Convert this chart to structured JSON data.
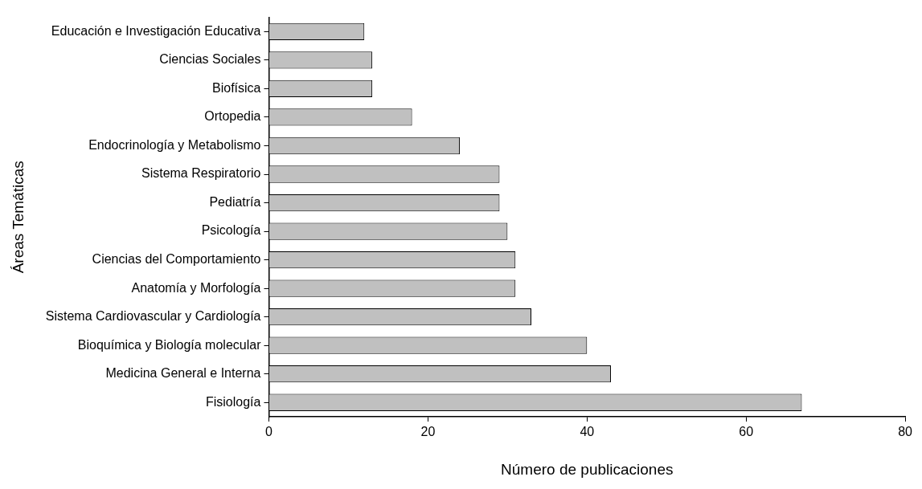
{
  "chart_data": {
    "type": "bar",
    "orientation": "horizontal",
    "xlabel": "Número de publicaciones",
    "ylabel": "Áreas Temáticas",
    "categories": [
      "Educación e Investigación Educativa",
      "Ciencias Sociales",
      "Biofísica",
      "Ortopedia",
      "Endocrinología y Metabolismo",
      "Sistema Respiratorio",
      "Pediatría",
      "Psicología",
      "Ciencias del Comportamiento",
      "Anatomía y Morfología",
      "Sistema Cardiovascular y Cardiología",
      "Bioquímica y Biología molecular",
      "Medicina General e Interna",
      "Fisiología"
    ],
    "values": [
      12,
      13,
      13,
      18,
      24,
      29,
      29,
      30,
      31,
      31,
      33,
      40,
      43,
      67
    ],
    "color": "#c0c0c0",
    "xlim": [
      0,
      80
    ],
    "xticks": [
      0,
      20,
      40,
      60,
      80
    ],
    "grid": false,
    "legend": false
  }
}
